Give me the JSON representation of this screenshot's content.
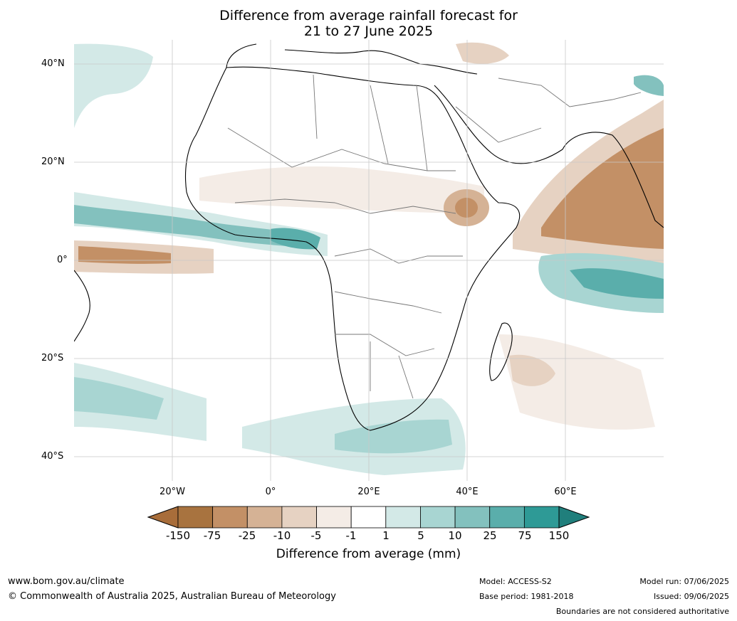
{
  "title_line1": "Difference from average rainfall forecast for",
  "title_line2": "21 to 27 June 2025",
  "lat_labels": [
    "40°N",
    "20°N",
    "0°",
    "20°S",
    "40°S"
  ],
  "lon_labels": [
    "20°W",
    "0°",
    "20°E",
    "40°E",
    "60°E"
  ],
  "colorbar": {
    "labels": [
      "-150",
      "-75",
      "-25",
      "-10",
      "-5",
      "-1",
      "1",
      "5",
      "10",
      "25",
      "75",
      "150"
    ],
    "colors": [
      "#a86d3a",
      "#a8733f",
      "#c39066",
      "#d5b295",
      "#e6d2c2",
      "#f4ece6",
      "#ffffff",
      "#d3e9e7",
      "#a8d5d2",
      "#83c1be",
      "#5aaeab",
      "#2e9a96",
      "#207f7c"
    ],
    "title": "Difference from average (mm)"
  },
  "footer": {
    "website": "www.bom.gov.au/climate",
    "copyright": "© Commonwealth of Australia 2025, Australian Bureau of Meteorology",
    "model": "Model: ACCESS-S2",
    "base_period": "Base period: 1981-2018",
    "model_run": "Model run: 07/06/2025",
    "issued": "Issued: 09/06/2025",
    "disclaimer": "Boundaries are not considered authoritative"
  }
}
